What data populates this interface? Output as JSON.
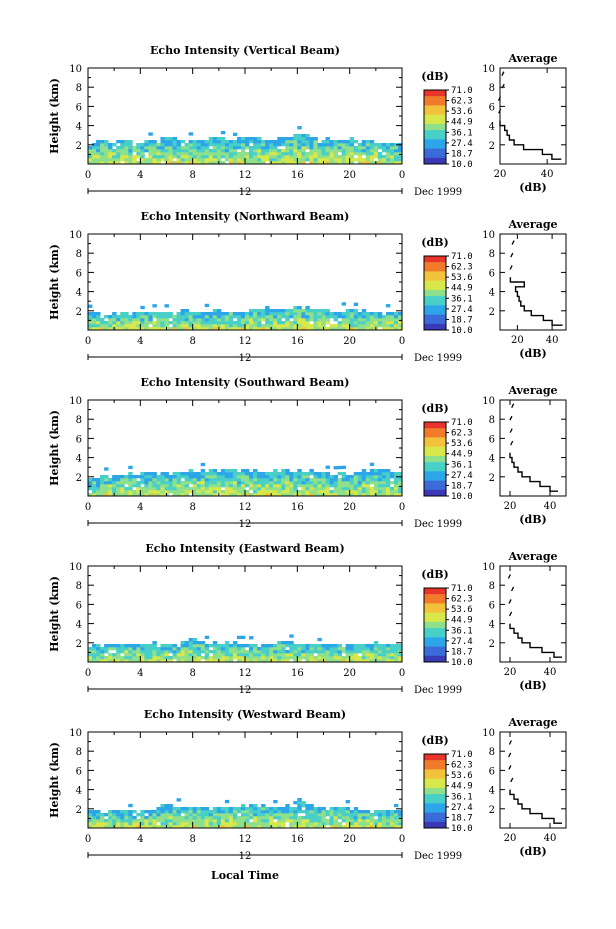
{
  "figure": {
    "xlabel_bottom": "Local Time",
    "date_label": "Dec 1999",
    "date_tick_label": "12",
    "colorbar_unit": "(dB)",
    "colorbar_ticks": [
      "71.0",
      "62.3",
      "53.6",
      "44.9",
      "36.1",
      "27.4",
      "18.7",
      "10.0"
    ],
    "colorbar_colors": [
      "#e8342a",
      "#f27a2b",
      "#f3c23b",
      "#d8e84a",
      "#8fe08a",
      "#48d0c8",
      "#2ca6e8",
      "#3a6bd8",
      "#3a3ab8"
    ],
    "avg_title": "Average",
    "avg_xlabel": "(dB)"
  },
  "chart_data": [
    {
      "type": "heatmap",
      "title": "Echo Intensity (Vertical Beam)",
      "ylabel": "Height (km)",
      "xlim": [
        0,
        24
      ],
      "ylim": [
        0,
        10
      ],
      "x_ticks": [
        "0",
        "4",
        "8",
        "12",
        "16",
        "20",
        "0"
      ],
      "y_ticks": [
        "2",
        "4",
        "6",
        "8",
        "10"
      ],
      "echo_top_km": [
        2.3,
        2.6,
        2.6,
        2.7,
        2.4,
        2.8,
        2.9,
        2.6,
        2.6,
        2.8,
        2.8,
        2.7,
        2.9,
        2.8,
        2.7,
        3.0,
        3.4,
        2.9,
        2.8,
        2.7,
        2.8,
        2.6,
        2.4,
        2.3,
        2.2
      ],
      "average_profile": {
        "xlim": [
          20,
          48
        ],
        "x_ticks": [
          "20",
          "40"
        ],
        "height_km": [
          0.5,
          1.0,
          1.5,
          2.0,
          2.5,
          3.0,
          3.5,
          4.0,
          4.5
        ],
        "db": [
          46,
          42,
          38,
          30,
          26,
          24,
          23,
          22,
          20
        ]
      }
    },
    {
      "type": "heatmap",
      "title": "Echo Intensity (Northward Beam)",
      "ylabel": "Height (km)",
      "xlim": [
        0,
        24
      ],
      "ylim": [
        0,
        10
      ],
      "x_ticks": [
        "0",
        "4",
        "8",
        "12",
        "16",
        "20",
        "0"
      ],
      "y_ticks": [
        "2",
        "4",
        "6",
        "8",
        "10"
      ],
      "echo_top_km": [
        1.9,
        1.9,
        1.8,
        1.9,
        1.9,
        2.0,
        2.0,
        2.3,
        2.1,
        2.0,
        2.2,
        2.1,
        2.0,
        2.6,
        2.4,
        2.3,
        2.7,
        2.5,
        2.2,
        2.2,
        2.4,
        2.1,
        2.0,
        2.1,
        2.0
      ],
      "average_profile": {
        "xlim": [
          10,
          48
        ],
        "x_ticks": [
          "20",
          "40"
        ],
        "height_km": [
          0.5,
          1.0,
          1.5,
          2.0,
          2.5,
          3.0,
          3.5,
          4.0,
          4.5,
          5.0,
          5.5
        ],
        "db": [
          46,
          40,
          35,
          28,
          24,
          22,
          21,
          20,
          19,
          24,
          16
        ]
      }
    },
    {
      "type": "heatmap",
      "title": "Echo Intensity (Southward Beam)",
      "ylabel": "Height (km)",
      "xlim": [
        0,
        24
      ],
      "ylim": [
        0,
        10
      ],
      "x_ticks": [
        "0",
        "4",
        "8",
        "12",
        "16",
        "20",
        "0"
      ],
      "y_ticks": [
        "2",
        "4",
        "6",
        "8",
        "10"
      ],
      "echo_top_km": [
        1.8,
        2.3,
        2.5,
        2.4,
        2.5,
        2.6,
        2.5,
        2.6,
        2.8,
        2.9,
        2.8,
        2.9,
        2.8,
        2.7,
        2.9,
        2.8,
        2.8,
        2.7,
        2.6,
        2.5,
        2.4,
        2.9,
        3.0,
        2.8,
        2.7
      ],
      "average_profile": {
        "xlim": [
          15,
          48
        ],
        "x_ticks": [
          "20",
          "40"
        ],
        "height_km": [
          0.5,
          1.0,
          1.5,
          2.0,
          2.5,
          3.0,
          3.5,
          4.0,
          4.5
        ],
        "db": [
          44,
          40,
          35,
          30,
          26,
          24,
          22,
          21,
          20
        ]
      }
    },
    {
      "type": "heatmap",
      "title": "Echo Intensity (Eastward Beam)",
      "ylabel": "Height (km)",
      "xlim": [
        0,
        24
      ],
      "ylim": [
        0,
        10
      ],
      "x_ticks": [
        "0",
        "4",
        "8",
        "12",
        "16",
        "20",
        "0"
      ],
      "y_ticks": [
        "2",
        "4",
        "6",
        "8",
        "10"
      ],
      "echo_top_km": [
        1.8,
        1.9,
        1.9,
        2.0,
        2.0,
        2.1,
        2.0,
        2.3,
        2.6,
        2.2,
        2.3,
        2.2,
        2.1,
        2.0,
        2.2,
        2.4,
        2.1,
        2.0,
        2.0,
        2.1,
        2.0,
        2.0,
        2.1,
        2.0,
        1.9
      ],
      "average_profile": {
        "xlim": [
          15,
          48
        ],
        "x_ticks": [
          "20",
          "40"
        ],
        "height_km": [
          0.5,
          1.0,
          1.5,
          2.0,
          2.5,
          3.0,
          3.5,
          4.0
        ],
        "db": [
          46,
          42,
          36,
          30,
          26,
          24,
          22,
          20
        ]
      }
    },
    {
      "type": "heatmap",
      "title": "Echo Intensity (Westward Beam)",
      "ylabel": "Height (km)",
      "xlim": [
        0,
        24
      ],
      "ylim": [
        0,
        10
      ],
      "x_ticks": [
        "0",
        "4",
        "8",
        "12",
        "16",
        "20",
        "0"
      ],
      "y_ticks": [
        "2",
        "4",
        "6",
        "8",
        "10"
      ],
      "echo_top_km": [
        1.9,
        1.9,
        2.0,
        2.0,
        2.1,
        2.2,
        2.7,
        2.4,
        2.3,
        2.3,
        2.3,
        2.4,
        2.5,
        2.6,
        2.4,
        2.4,
        3.1,
        2.5,
        2.3,
        2.2,
        2.2,
        2.1,
        2.0,
        2.0,
        2.0
      ],
      "average_profile": {
        "xlim": [
          15,
          48
        ],
        "x_ticks": [
          "20",
          "40"
        ],
        "height_km": [
          0.5,
          1.0,
          1.5,
          2.0,
          2.5,
          3.0,
          3.5,
          4.0
        ],
        "db": [
          46,
          42,
          36,
          30,
          26,
          24,
          22,
          20
        ]
      }
    }
  ]
}
